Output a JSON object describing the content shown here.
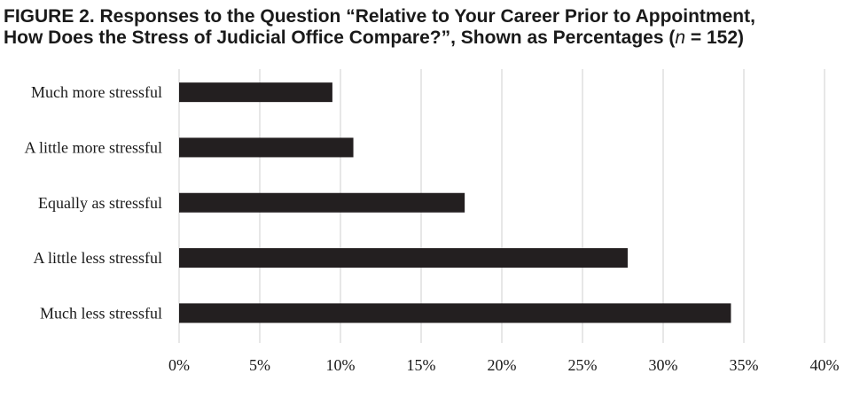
{
  "figure": {
    "title_line1": "FIGURE 2. Responses to the Question “Relative to Your Career Prior to Appointment,",
    "title_line2_prefix": "How Does the Stress of Judicial Office Compare?”, Shown as Percentages (",
    "title_n_var": "n",
    "title_line2_suffix": " = 152)"
  },
  "chart_data": {
    "type": "bar",
    "orientation": "horizontal",
    "title": "Responses to the Question “Relative to Your Career Prior to Appointment, How Does the Stress of Judicial Office Compare?”, Shown as Percentages (n = 152)",
    "categories": [
      "Much more stressful",
      "A little more stressful",
      "Equally as stressful",
      "A little less stressful",
      "Much less stressful"
    ],
    "values": [
      9.5,
      10.8,
      17.7,
      27.8,
      34.2
    ],
    "value_unit": "%",
    "xlim": [
      0,
      40
    ],
    "xticks": [
      "0%",
      "5%",
      "10%",
      "15%",
      "20%",
      "25%",
      "30%",
      "35%",
      "40%"
    ],
    "xlabel": "",
    "ylabel": "",
    "grid": "vertical",
    "legend": "none",
    "bar_color": "#231f20",
    "grid_color": "#cfcfcf",
    "text_color": "#1a1a1a"
  }
}
